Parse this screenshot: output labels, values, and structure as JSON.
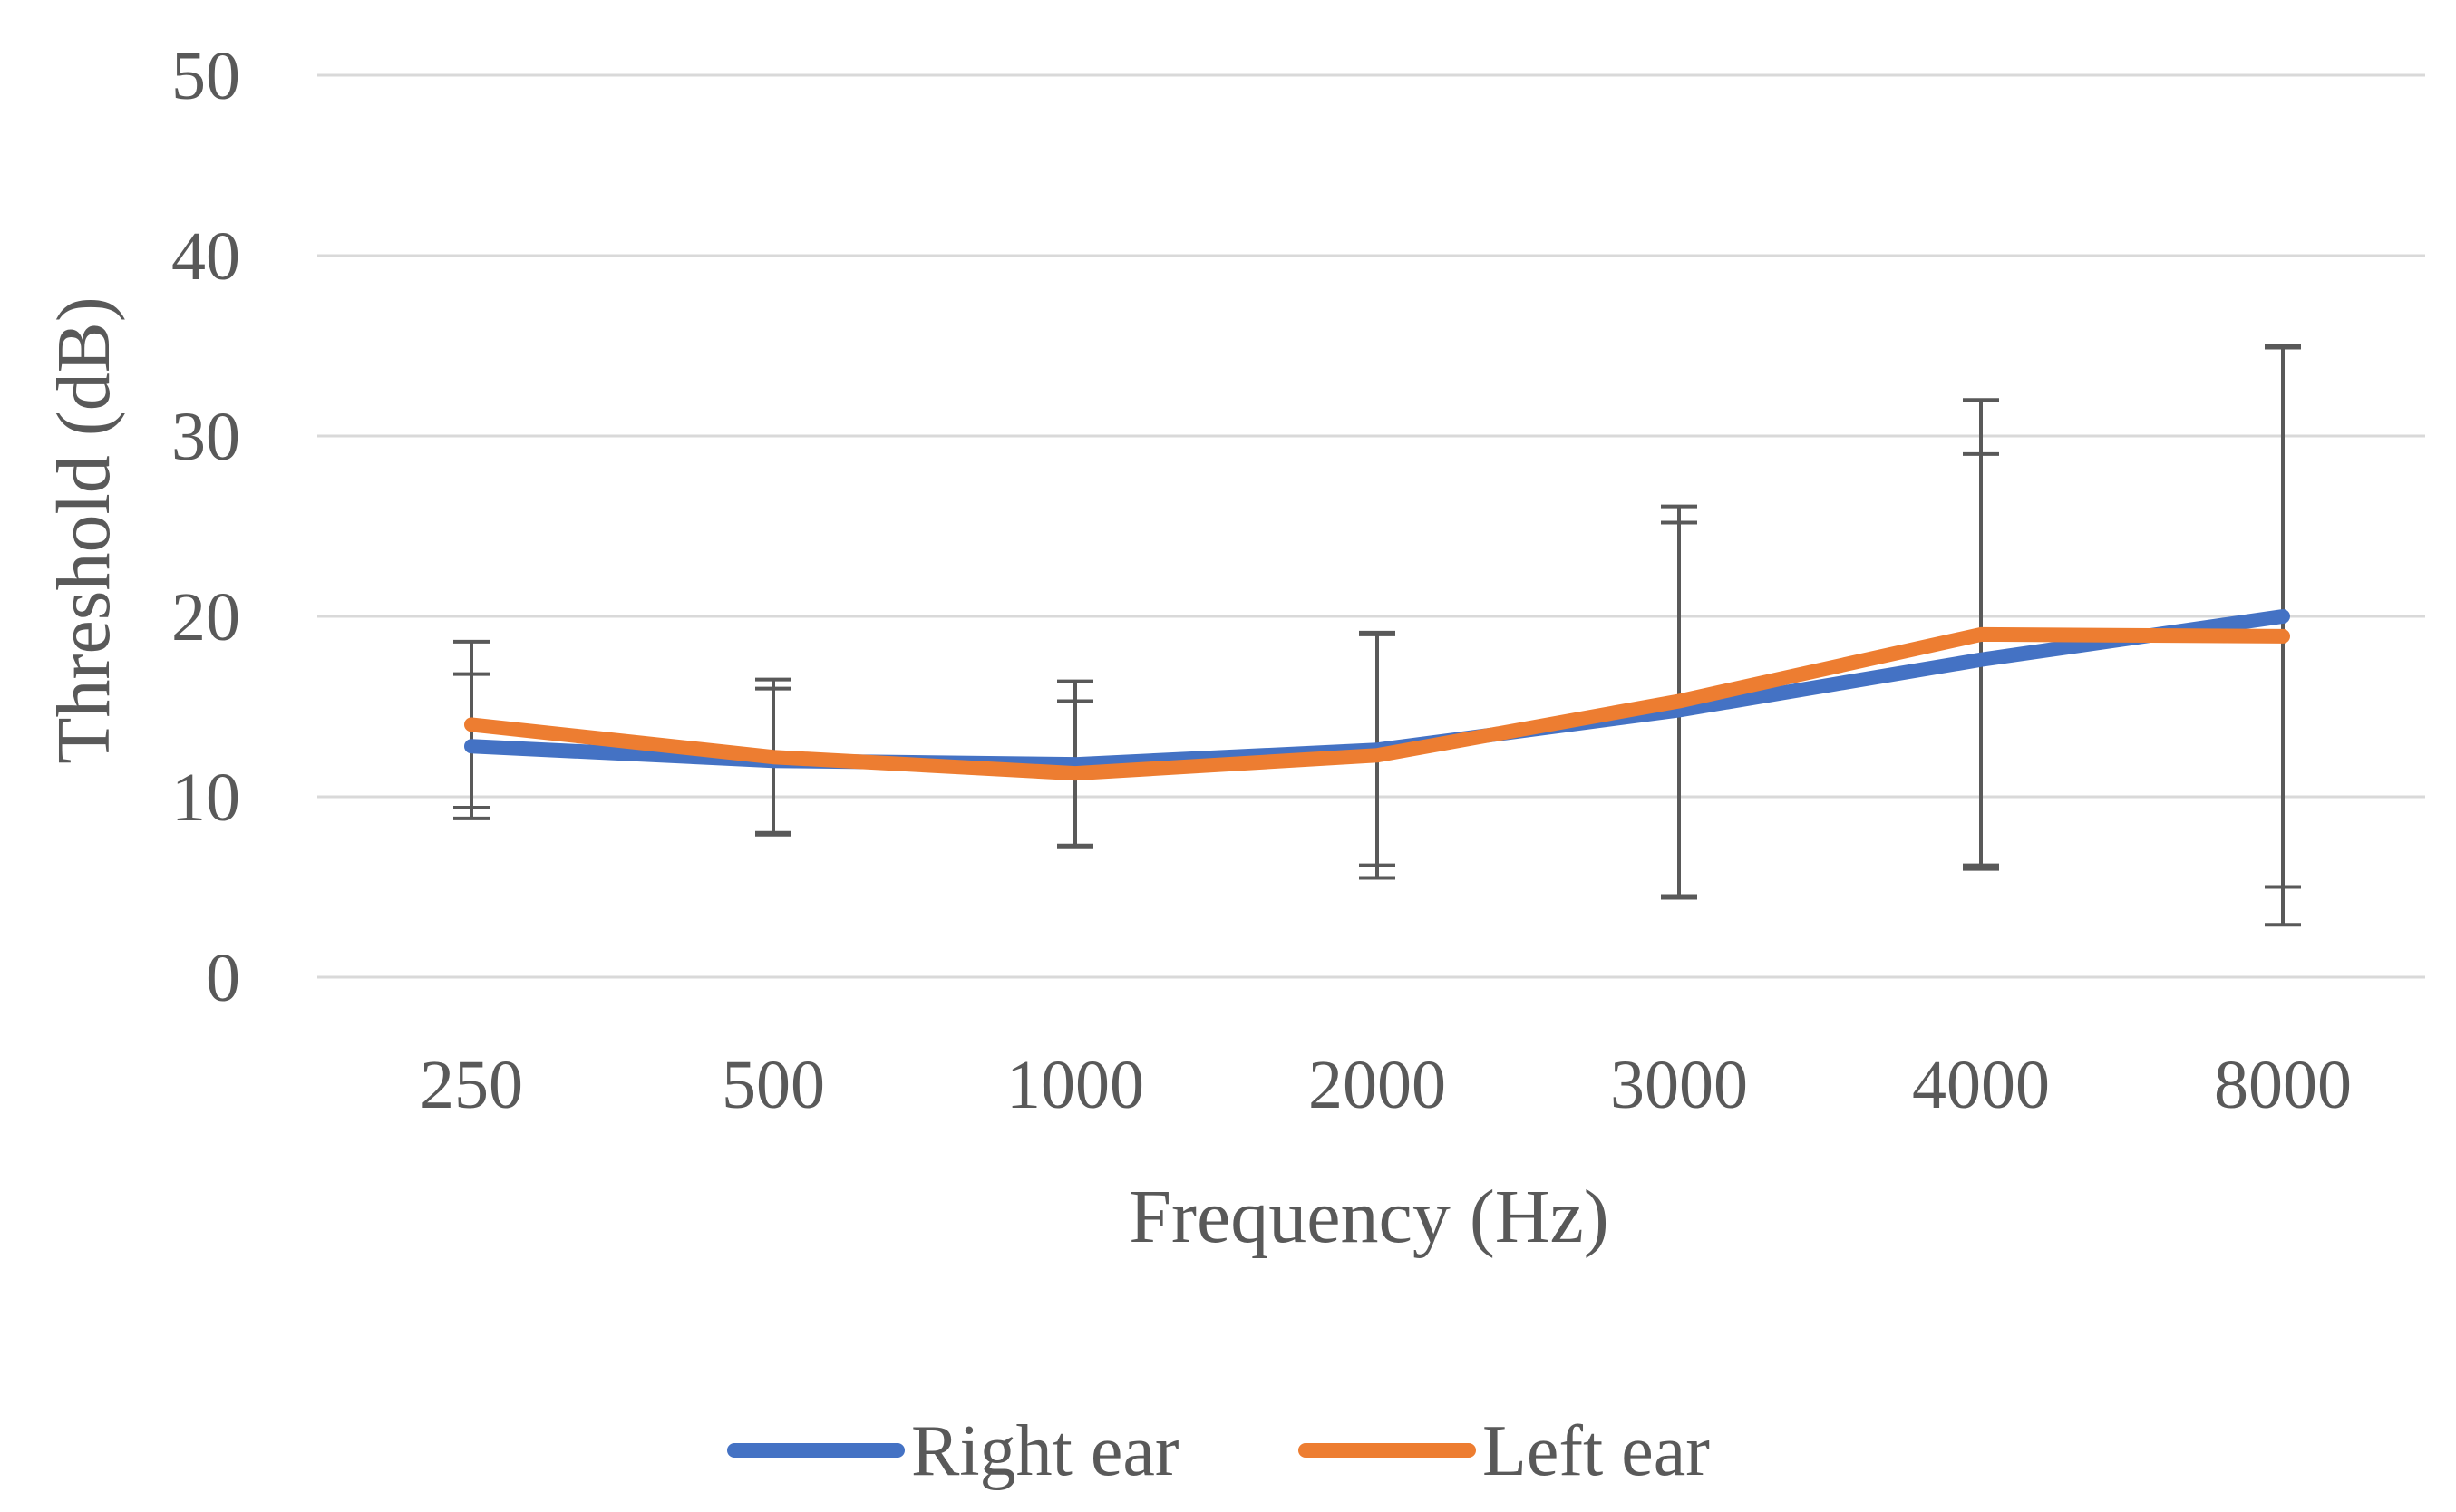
{
  "chart_data": {
    "type": "line",
    "title": "",
    "xlabel": "Frequency (Hz)",
    "ylabel": "Threshold (dB)",
    "categories": [
      "250",
      "500",
      "1000",
      "2000",
      "3000",
      "4000",
      "8000"
    ],
    "ylim": [
      0,
      50
    ],
    "yticks": [
      "0",
      "10",
      "20",
      "30",
      "40",
      "50"
    ],
    "grid": true,
    "legend_position": "bottom",
    "series": [
      {
        "name": "Right ear",
        "color": "#4472c4",
        "values": [
          12.8,
          12.0,
          11.8,
          12.6,
          14.8,
          17.6,
          20.0
        ],
        "error": [
          4.0,
          4.0,
          4.6,
          6.4,
          10.4,
          11.4,
          15.0
        ]
      },
      {
        "name": "Left ear",
        "color": "#ed7d31",
        "values": [
          14.0,
          12.2,
          11.3,
          12.3,
          15.3,
          19.0,
          18.9
        ],
        "error": [
          4.6,
          4.3,
          4.0,
          6.8,
          10.8,
          13.0,
          16.0
        ]
      }
    ]
  }
}
